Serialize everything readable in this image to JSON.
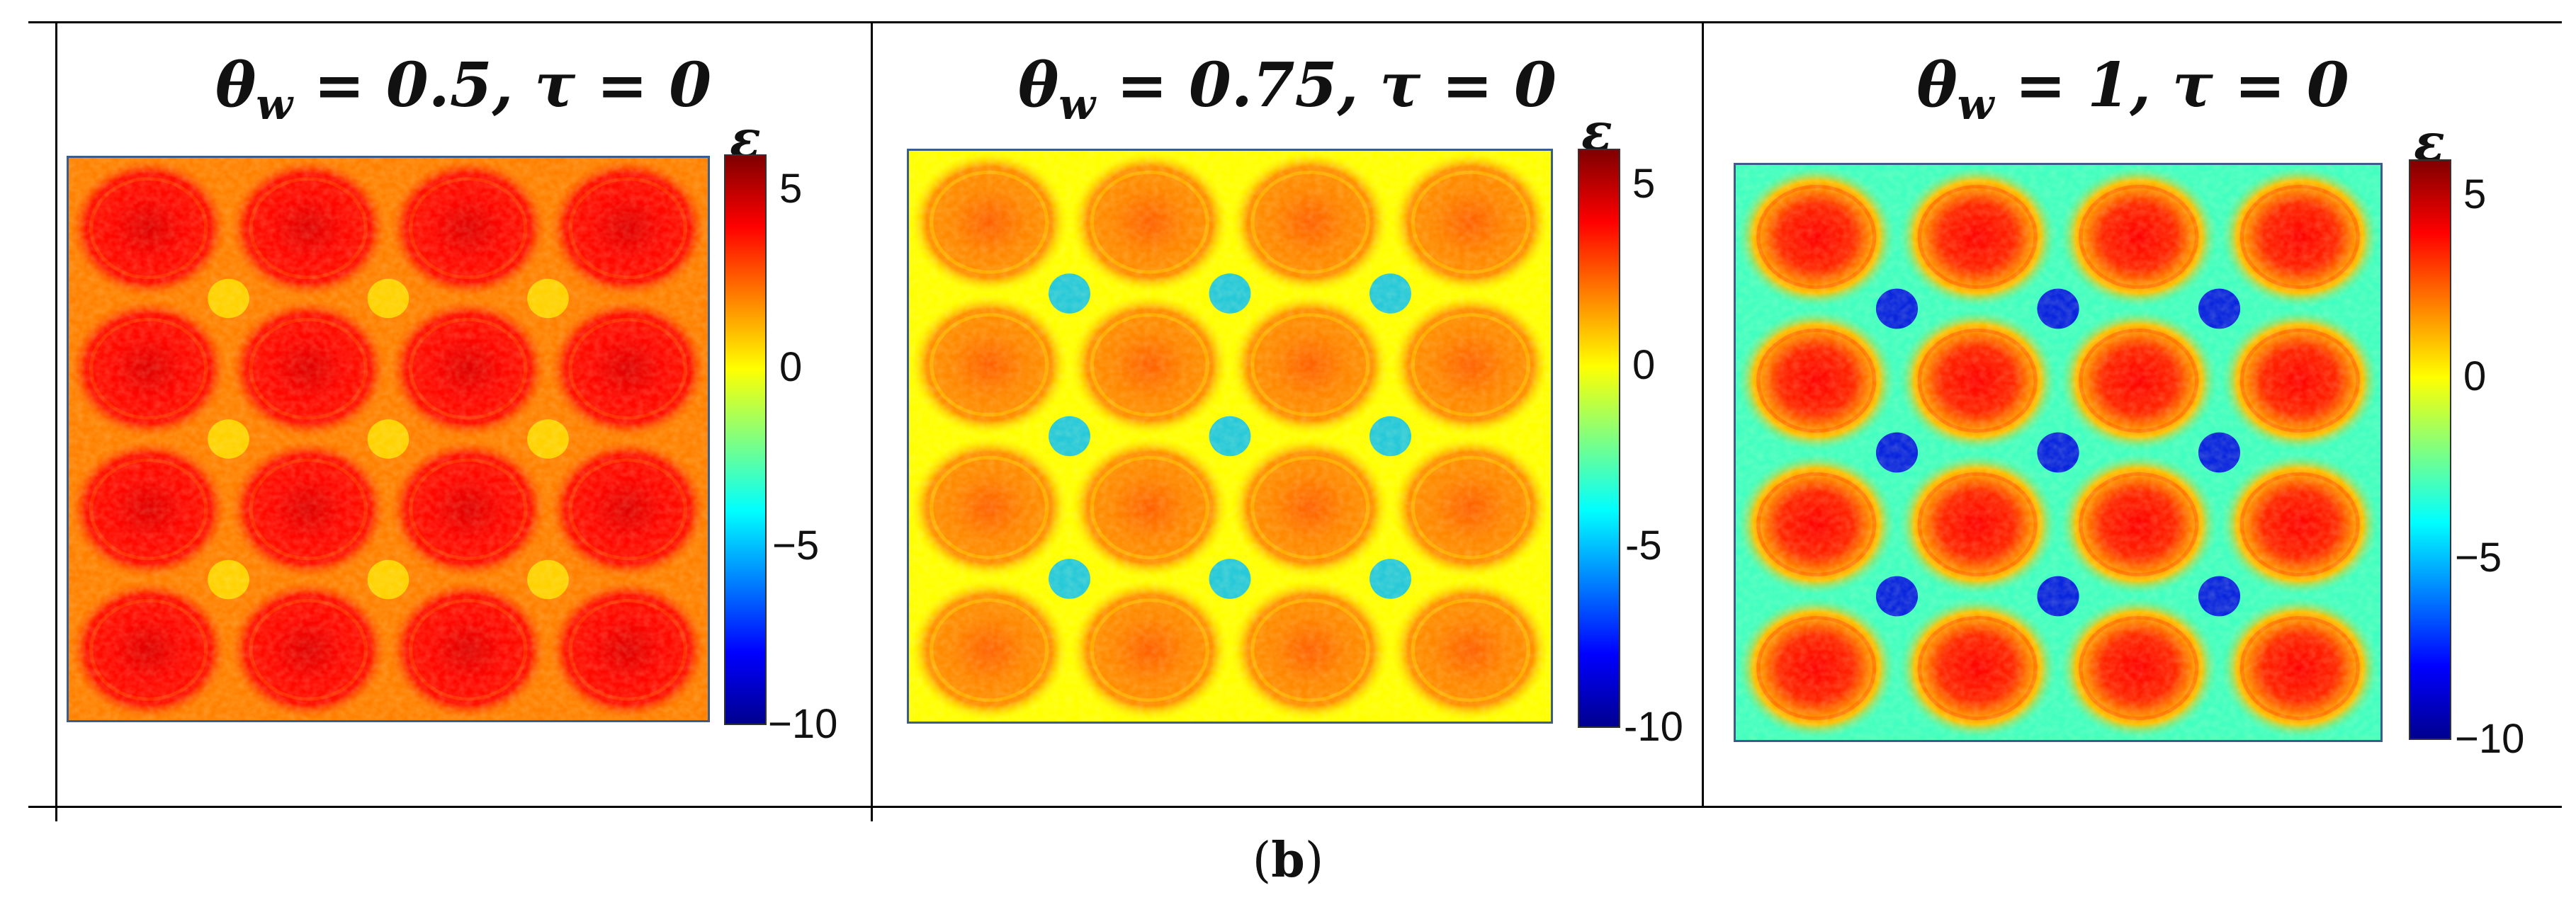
{
  "figure_label": "b",
  "panels": [
    {
      "title": "θw = 0.5, τ = 0",
      "title_parts": {
        "sym": "θ",
        "sub": "w",
        "rest": " = 0.5, τ = 0"
      },
      "colorbar_symbol": "ε",
      "colorbar_ticks": [
        "5",
        "0",
        "−5",
        "−10"
      ]
    },
    {
      "title": "θw = 0.75, τ = 0",
      "title_parts": {
        "sym": "θ",
        "sub": "w",
        "rest": " = 0.75, τ = 0"
      },
      "colorbar_symbol": "ε",
      "colorbar_ticks": [
        "5",
        "0",
        "-5",
        "-10"
      ]
    },
    {
      "title": "θw = 1, τ = 0",
      "title_parts": {
        "sym": "θ",
        "sub": "w",
        "rest": " = 1, τ = 0"
      },
      "colorbar_symbol": "ε",
      "colorbar_ticks": [
        "5",
        "0",
        "−5",
        "−10"
      ]
    }
  ],
  "chart_data": [
    {
      "type": "heatmap",
      "title": "θw = 0.5, τ = 0",
      "colorbar_label": "ε",
      "color_range": [
        -10,
        6
      ],
      "colorbar_ticks": [
        5,
        0,
        -5,
        -10
      ],
      "grid": {
        "rows": 4,
        "cols": 4
      },
      "peak_value": 4.5,
      "background_value": 2.0,
      "junction_value": 0.5
    },
    {
      "type": "heatmap",
      "title": "θw = 0.75, τ = 0",
      "colorbar_label": "ε",
      "color_range": [
        -10,
        6
      ],
      "colorbar_ticks": [
        5,
        0,
        -5,
        -10
      ],
      "grid": {
        "rows": 4,
        "cols": 4
      },
      "peak_value": 2.5,
      "background_value": 0.0,
      "junction_value": -5.0
    },
    {
      "type": "heatmap",
      "title": "θw = 1, τ = 0",
      "colorbar_label": "ε",
      "color_range": [
        -10,
        6
      ],
      "colorbar_ticks": [
        5,
        0,
        -5,
        -10
      ],
      "grid": {
        "rows": 4,
        "cols": 4
      },
      "peak_value": 4.0,
      "background_value": -3.0,
      "junction_value": -8.5
    }
  ],
  "colors": {
    "jet": [
      "#00008f",
      "#0000ff",
      "#0080ff",
      "#00ffff",
      "#80ff80",
      "#ffff00",
      "#ff8000",
      "#ff0000",
      "#800000"
    ],
    "heatmap_border": "#3a5d8c"
  }
}
